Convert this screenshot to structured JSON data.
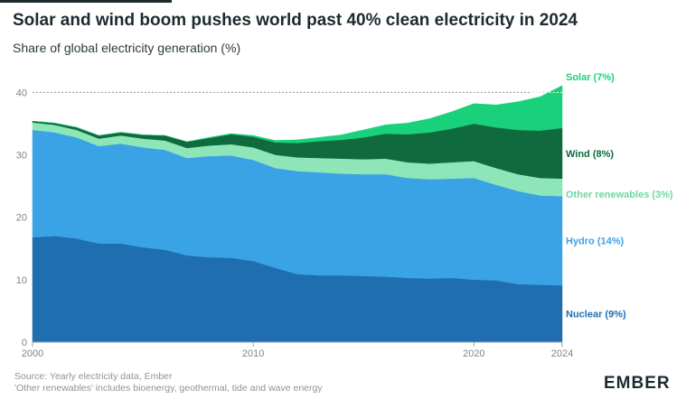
{
  "title": "Solar and wind boom pushes world past 40% clean electricity in 2024",
  "subtitle": "Share of global electricity generation (%)",
  "footer": {
    "source": "Source: Yearly electricity data, Ember",
    "note": "'Other renewables' includes bioenergy, geothermal, tide and wave energy"
  },
  "logo": "EMBER",
  "chart_data": {
    "type": "area",
    "stacked": true,
    "x": [
      2000,
      2001,
      2002,
      2003,
      2004,
      2005,
      2006,
      2007,
      2008,
      2009,
      2010,
      2011,
      2012,
      2013,
      2014,
      2015,
      2016,
      2017,
      2018,
      2019,
      2020,
      2021,
      2022,
      2023,
      2024
    ],
    "xticks": [
      "2000",
      "2010",
      "2020",
      "2024"
    ],
    "yticks": [
      "0",
      "10",
      "20",
      "30",
      "40"
    ],
    "ylim": [
      0,
      41
    ],
    "reference_line": 40,
    "series": [
      {
        "name": "Nuclear (9%)",
        "color": "#1f6fb0",
        "values": [
          16.8,
          17.0,
          16.6,
          15.8,
          15.8,
          15.2,
          14.8,
          13.9,
          13.6,
          13.5,
          13.0,
          11.9,
          10.9,
          10.7,
          10.7,
          10.6,
          10.5,
          10.3,
          10.2,
          10.3,
          10.0,
          9.9,
          9.3,
          9.2,
          9.1
        ]
      },
      {
        "name": "Hydro (14%)",
        "color": "#3aa3e5",
        "values": [
          17.2,
          16.6,
          16.2,
          15.6,
          16.0,
          16.0,
          16.0,
          15.6,
          16.2,
          16.4,
          16.2,
          16.0,
          16.5,
          16.5,
          16.3,
          16.3,
          16.4,
          16.0,
          15.9,
          15.9,
          16.3,
          15.3,
          14.9,
          14.3,
          14.3
        ]
      },
      {
        "name": "Other renewables (3%)",
        "color": "#8ee6b8",
        "values": [
          1.2,
          1.2,
          1.2,
          1.2,
          1.3,
          1.4,
          1.5,
          1.6,
          1.7,
          1.8,
          2.0,
          2.1,
          2.2,
          2.3,
          2.4,
          2.4,
          2.5,
          2.5,
          2.5,
          2.6,
          2.7,
          2.7,
          2.7,
          2.8,
          2.8
        ]
      },
      {
        "name": "Wind (8%)",
        "color": "#0f6b3d",
        "values": [
          0.2,
          0.3,
          0.4,
          0.5,
          0.5,
          0.6,
          0.8,
          1.0,
          1.2,
          1.6,
          1.7,
          2.0,
          2.3,
          2.7,
          3.0,
          3.5,
          4.0,
          4.5,
          5.0,
          5.4,
          6.0,
          6.5,
          7.1,
          7.6,
          8.1
        ]
      },
      {
        "name": "Solar (7%)",
        "color": "#19d17b",
        "values": [
          0.0,
          0.0,
          0.0,
          0.0,
          0.0,
          0.0,
          0.0,
          0.0,
          0.1,
          0.1,
          0.2,
          0.3,
          0.5,
          0.6,
          0.8,
          1.2,
          1.4,
          1.8,
          2.2,
          2.7,
          3.2,
          3.6,
          4.5,
          5.4,
          6.8
        ]
      }
    ]
  }
}
